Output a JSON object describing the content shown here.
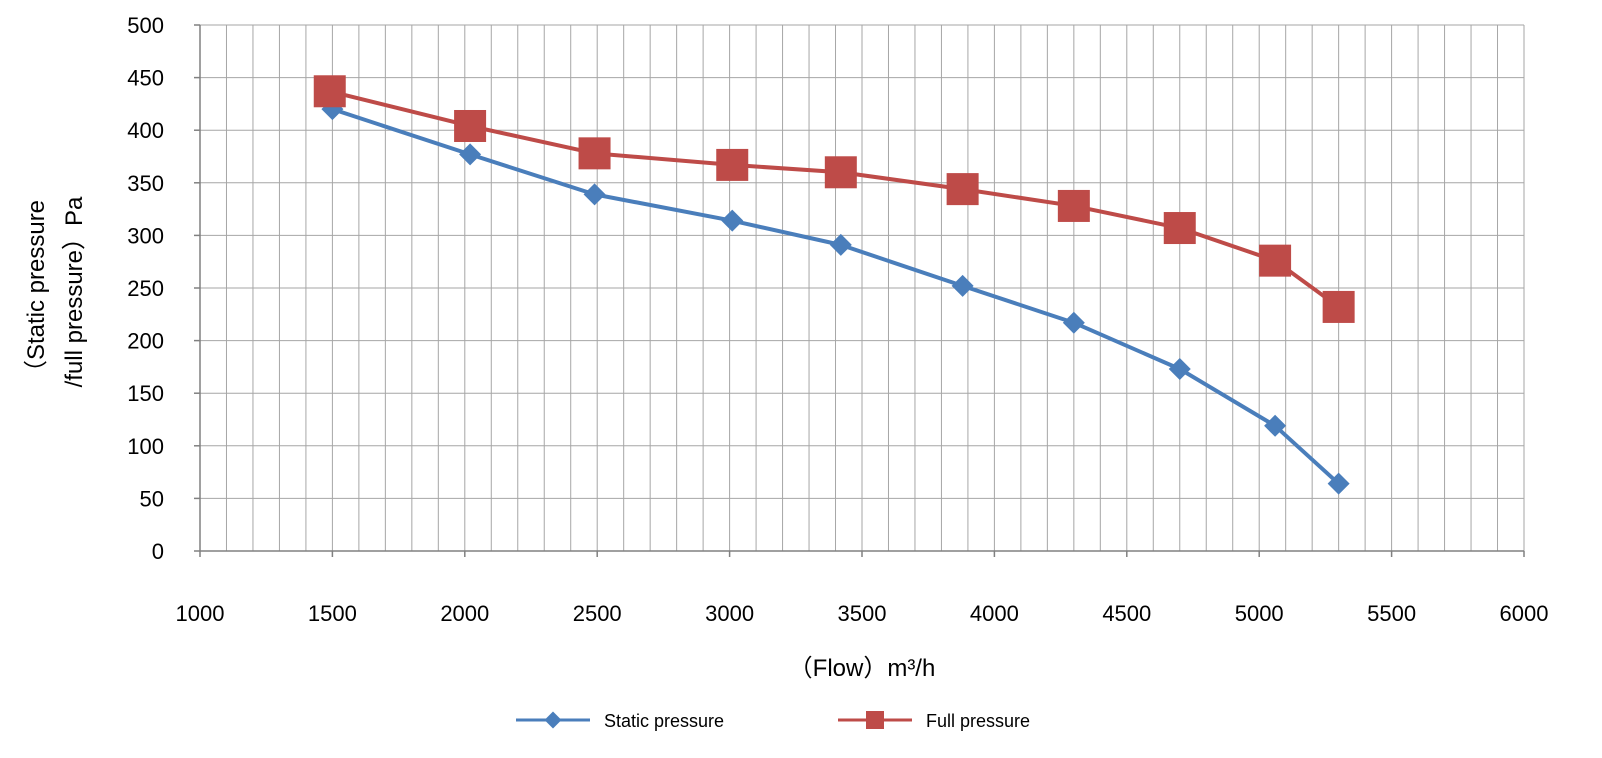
{
  "chart_data": {
    "type": "line",
    "title": "",
    "xlabel": "（Flow）m³/h",
    "ylabel_lines": [
      "（Static pressure",
      "/full pressure）Pa"
    ],
    "xlim": [
      1000,
      6000
    ],
    "ylim": [
      0,
      500
    ],
    "x_ticks": [
      "1000",
      "1500",
      "2000",
      "2500",
      "3000",
      "3500",
      "4000",
      "4500",
      "5000",
      "5500",
      "6000"
    ],
    "y_ticks": [
      "0",
      "50",
      "100",
      "150",
      "200",
      "250",
      "300",
      "350",
      "400",
      "450",
      "500"
    ],
    "grid": true,
    "legend_position": "bottom",
    "series": [
      {
        "name": "Static pressure",
        "color": "#4a7ebb",
        "marker": "diamond",
        "x": [
          1500,
          2020,
          2490,
          3010,
          3420,
          3880,
          4300,
          4700,
          5060,
          5300
        ],
        "y": [
          420,
          377,
          339,
          314,
          291,
          252,
          217,
          173,
          119,
          64
        ]
      },
      {
        "name": "Full pressure",
        "color": "#be4b48",
        "marker": "square",
        "x": [
          1490,
          2020,
          2490,
          3010,
          3420,
          3880,
          4300,
          4700,
          5060,
          5300
        ],
        "y": [
          437,
          404,
          378,
          367,
          360,
          344,
          328,
          307,
          276,
          232
        ]
      }
    ]
  }
}
